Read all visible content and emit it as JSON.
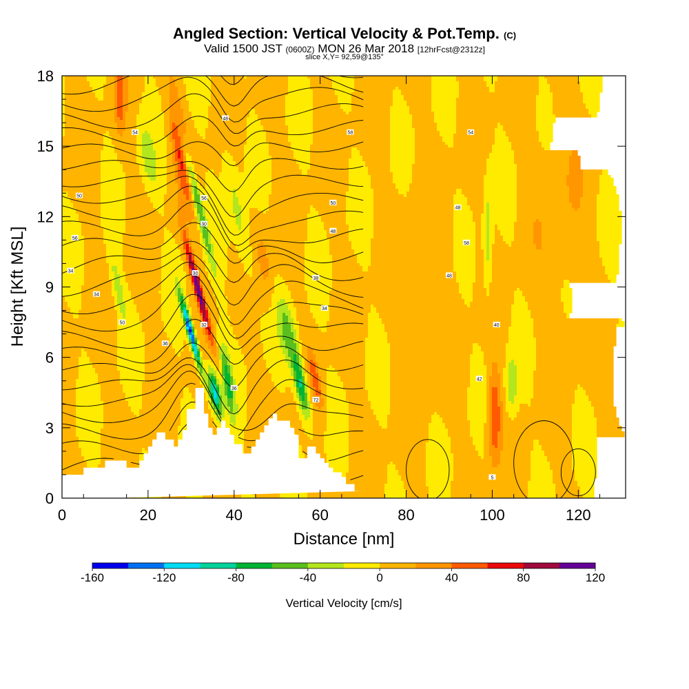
{
  "header": {
    "title": "Angled Section: Vertical Velocity & Pot.Temp.",
    "title_mark": "(C)",
    "subtitle_main": "Valid 1500 JST",
    "subtitle_utc": "(0600Z)",
    "subtitle_date": "MON 26 Mar 2018",
    "subtitle_run": "[12hrFcst@2312z]",
    "slice": "slice X,Y= 92,59@135°"
  },
  "chart_data": {
    "type": "heatmap",
    "title": "Angled Section: Vertical Velocity & Pot.Temp.",
    "xlabel": "Distance [nm]",
    "ylabel": "Height [Kft MSL]",
    "xlim": [
      0,
      131
    ],
    "ylim": [
      0,
      18
    ],
    "x_ticks": [
      0,
      20,
      40,
      60,
      80,
      100,
      120
    ],
    "y_ticks": [
      0,
      3,
      6,
      9,
      12,
      15,
      18
    ],
    "grid": false,
    "colorbar": {
      "label": "Vertical Velocity [cm/s]",
      "tick_labels": [
        "-160",
        "-120",
        "-80",
        "-40",
        "0",
        "40",
        "80",
        "120"
      ],
      "tick_values": [
        -160,
        -120,
        -80,
        -40,
        0,
        40,
        80,
        120
      ],
      "levels": [
        -160,
        -140,
        -120,
        -100,
        -80,
        -60,
        -40,
        -20,
        0,
        20,
        40,
        60,
        80,
        100,
        120
      ],
      "colors": [
        "#0000ee",
        "#0070f0",
        "#00dcf5",
        "#00d29b",
        "#00b432",
        "#5abe1e",
        "#b4e61e",
        "#ffeb00",
        "#ffb400",
        "#ff9600",
        "#ff5a00",
        "#eb0a0a",
        "#a00a3c",
        "#640096"
      ]
    },
    "terrain": {
      "x": [
        0,
        5,
        5,
        10,
        10,
        15,
        15,
        18,
        18,
        19,
        19,
        20,
        20,
        21,
        21,
        22,
        22,
        24,
        24,
        26,
        26,
        27,
        27,
        28,
        28,
        29,
        29,
        31,
        31,
        33,
        33,
        34,
        34,
        35,
        35,
        36,
        36,
        37,
        37,
        38,
        38,
        39,
        39,
        40,
        40,
        42,
        42,
        44,
        44,
        45,
        45,
        46,
        46,
        47,
        47,
        48,
        48,
        49,
        49,
        50,
        50,
        53,
        53,
        54,
        54,
        55,
        55,
        57,
        57,
        59,
        59,
        60,
        60,
        61,
        61,
        62,
        62,
        63,
        63,
        65,
        65,
        66,
        66,
        68,
        68,
        70,
        70,
        131
      ],
      "height": [
        1.0,
        1.0,
        1.3,
        1.3,
        1.6,
        1.6,
        1.3,
        1.3,
        1.6,
        1.6,
        1.9,
        1.9,
        2.2,
        2.2,
        2.5,
        2.5,
        2.8,
        2.8,
        2.5,
        2.5,
        2.2,
        2.2,
        2.5,
        2.5,
        2.9,
        2.9,
        3.8,
        3.8,
        4.7,
        4.7,
        3.6,
        3.6,
        3.0,
        3.0,
        2.7,
        2.7,
        3.0,
        3.0,
        3.3,
        3.3,
        3.0,
        3.0,
        2.7,
        2.7,
        2.3,
        2.3,
        1.9,
        1.9,
        2.2,
        2.2,
        2.5,
        2.5,
        2.8,
        2.8,
        3.1,
        3.1,
        3.4,
        3.4,
        3.6,
        3.6,
        3.3,
        3.3,
        3.0,
        3.0,
        2.7,
        2.7,
        1.7,
        1.7,
        2.2,
        2.2,
        1.9,
        1.9,
        1.7,
        1.7,
        1.5,
        1.5,
        1.3,
        1.3,
        1.1,
        1.1,
        0.9,
        0.9,
        0.6,
        0.6,
        0.3,
        0.3,
        0.3
      ]
    },
    "velocity_features": [
      {
        "x": 31.5,
        "height": 9.0,
        "value": 110,
        "x_spread": 0.9,
        "h_spread": 2.2,
        "slope": -1.4
      },
      {
        "x": 30.0,
        "height": 7.0,
        "value": -150,
        "x_spread": 0.8,
        "h_spread": 1.6,
        "slope": -1.5
      },
      {
        "x": 27.5,
        "height": 15.0,
        "value": 60,
        "x_spread": 1.8,
        "h_spread": 2.5,
        "slope": -0.8
      },
      {
        "x": 31.0,
        "height": 13.0,
        "value": -70,
        "x_spread": 1.0,
        "h_spread": 3.0,
        "slope": -1.3
      },
      {
        "x": 35.5,
        "height": 4.5,
        "value": -110,
        "x_spread": 1.2,
        "h_spread": 1.0,
        "slope": -1.0
      },
      {
        "x": 38.5,
        "height": 5.0,
        "value": -70,
        "x_spread": 1.2,
        "h_spread": 1.5,
        "slope": -0.8
      },
      {
        "x": 55.5,
        "height": 4.8,
        "value": -90,
        "x_spread": 1.3,
        "h_spread": 1.4,
        "slope": -1.0
      },
      {
        "x": 52.5,
        "height": 7.0,
        "value": -50,
        "x_spread": 2.0,
        "h_spread": 1.5,
        "slope": -1.0
      },
      {
        "x": 59.0,
        "height": 5.0,
        "value": 50,
        "x_spread": 1.0,
        "h_spread": 1.2,
        "slope": -1.0
      },
      {
        "x": 100.5,
        "height": 3.5,
        "value": 60,
        "x_spread": 1.5,
        "h_spread": 2.0,
        "slope": 0
      },
      {
        "x": 104.5,
        "height": 4.8,
        "value": -40,
        "x_spread": 1.4,
        "h_spread": 1.3,
        "slope": 0
      },
      {
        "x": 99.0,
        "height": 11.0,
        "value": -35,
        "x_spread": 1.0,
        "h_spread": 2.5,
        "slope": 0
      },
      {
        "x": 41.0,
        "height": 12.0,
        "value": -30,
        "x_spread": 1.8,
        "h_spread": 3.0,
        "slope": -1.0
      },
      {
        "x": 20.0,
        "height": 14.5,
        "value": -30,
        "x_spread": 1.8,
        "h_spread": 1.5,
        "slope": -0.8
      },
      {
        "x": 13.0,
        "height": 9.0,
        "value": -35,
        "x_spread": 1.2,
        "h_spread": 1.5,
        "slope": -1.0
      },
      {
        "x": 13.5,
        "height": 17.0,
        "value": 45,
        "x_spread": 1.2,
        "h_spread": 1.5,
        "slope": 0
      },
      {
        "x": 47.0,
        "height": 10.0,
        "value": 25,
        "x_spread": 1.8,
        "h_spread": 1.8,
        "slope": -0.7
      },
      {
        "x": 84.0,
        "height": 9.0,
        "value": 12,
        "x_spread": 6.0,
        "h_spread": 4.0,
        "slope": 0
      },
      {
        "x": 116.0,
        "height": 12.0,
        "value": 12,
        "x_spread": 7.0,
        "h_spread": 5.0,
        "slope": 0
      }
    ],
    "isentropes": {
      "label_values": [
        "54",
        "48",
        "58",
        "54",
        "50",
        "56",
        "50",
        "48",
        "56",
        "30",
        "48",
        "58",
        "34",
        "30",
        "38",
        "48",
        "34",
        "50",
        "32",
        "34",
        "40",
        "36",
        "36",
        "72",
        "42",
        "5"
      ],
      "labels": [
        {
          "x": 17,
          "height": 15.6,
          "text": "54"
        },
        {
          "x": 38,
          "height": 16.2,
          "text": "48"
        },
        {
          "x": 67,
          "height": 15.6,
          "text": "58"
        },
        {
          "x": 95,
          "height": 15.6,
          "text": "54"
        },
        {
          "x": 4,
          "height": 12.9,
          "text": "50"
        },
        {
          "x": 33,
          "height": 12.8,
          "text": "56"
        },
        {
          "x": 63,
          "height": 12.6,
          "text": "50"
        },
        {
          "x": 92,
          "height": 12.4,
          "text": "48"
        },
        {
          "x": 3,
          "height": 11.1,
          "text": "56"
        },
        {
          "x": 33,
          "height": 11.7,
          "text": "30"
        },
        {
          "x": 63,
          "height": 11.4,
          "text": "48"
        },
        {
          "x": 94,
          "height": 10.9,
          "text": "58"
        },
        {
          "x": 2,
          "height": 9.7,
          "text": "34"
        },
        {
          "x": 31,
          "height": 9.6,
          "text": "30"
        },
        {
          "x": 59,
          "height": 9.4,
          "text": "38"
        },
        {
          "x": 90,
          "height": 9.5,
          "text": "48"
        },
        {
          "x": 8,
          "height": 8.7,
          "text": "34"
        },
        {
          "x": 14,
          "height": 7.5,
          "text": "50"
        },
        {
          "x": 33,
          "height": 7.4,
          "text": "32"
        },
        {
          "x": 61,
          "height": 8.1,
          "text": "34"
        },
        {
          "x": 101,
          "height": 7.4,
          "text": "40"
        },
        {
          "x": 24,
          "height": 6.6,
          "text": "36"
        },
        {
          "x": 40,
          "height": 4.7,
          "text": "36"
        },
        {
          "x": 59,
          "height": 4.2,
          "text": "72"
        },
        {
          "x": 97,
          "height": 5.1,
          "text": "42"
        },
        {
          "x": 100,
          "height": 0.9,
          "text": "5"
        }
      ]
    }
  }
}
